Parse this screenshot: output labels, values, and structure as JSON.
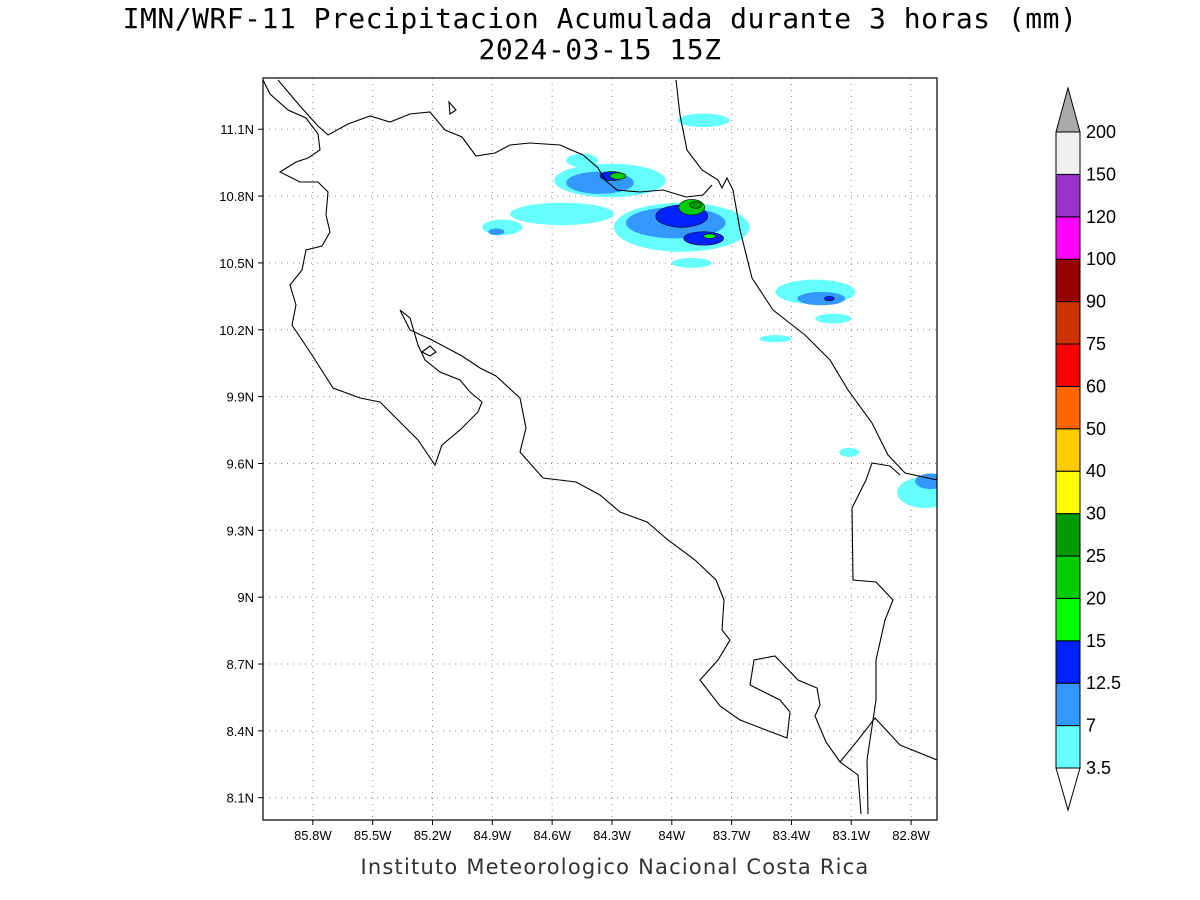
{
  "title": {
    "line1": "IMN/WRF-11 Precipitacion Acumulada durante 3 horas (mm)",
    "line2": "2024-03-15 15Z"
  },
  "footer": "Instituto Meteorologico Nacional Costa Rica",
  "map": {
    "lon_range": [
      -86.05,
      -82.67
    ],
    "lat_range": [
      8.0,
      11.33
    ],
    "x_ticks": [
      {
        "lon": -85.8,
        "label": "85.8W"
      },
      {
        "lon": -85.5,
        "label": "85.5W"
      },
      {
        "lon": -85.2,
        "label": "85.2W"
      },
      {
        "lon": -84.9,
        "label": "84.9W"
      },
      {
        "lon": -84.6,
        "label": "84.6W"
      },
      {
        "lon": -84.3,
        "label": "84.3W"
      },
      {
        "lon": -84.0,
        "label": "84W"
      },
      {
        "lon": -83.7,
        "label": "83.7W"
      },
      {
        "lon": -83.4,
        "label": "83.4W"
      },
      {
        "lon": -83.1,
        "label": "83.1W"
      },
      {
        "lon": -82.8,
        "label": "82.8W"
      }
    ],
    "y_ticks": [
      {
        "lat": 11.1,
        "label": "11.1N"
      },
      {
        "lat": 10.8,
        "label": "10.8N"
      },
      {
        "lat": 10.5,
        "label": "10.5N"
      },
      {
        "lat": 10.2,
        "label": "10.2N"
      },
      {
        "lat": 9.9,
        "label": "9.9N"
      },
      {
        "lat": 9.6,
        "label": "9.6N"
      },
      {
        "lat": 9.3,
        "label": "9.3N"
      },
      {
        "lat": 9.0,
        "label": "9N"
      },
      {
        "lat": 8.7,
        "label": "8.7N"
      },
      {
        "lat": 8.4,
        "label": "8.4N"
      },
      {
        "lat": 8.1,
        "label": "8.1N"
      }
    ],
    "grid": true
  },
  "colorbar": {
    "levels": [
      "3.5",
      "7",
      "12.5",
      "15",
      "20",
      "25",
      "30",
      "40",
      "50",
      "60",
      "75",
      "90",
      "100",
      "120",
      "150",
      "200"
    ],
    "colors": [
      "#66ffff",
      "#3399ff",
      "#0022ff",
      "#00ff00",
      "#00cc00",
      "#009900",
      "#ffff00",
      "#ffcc00",
      "#ff6600",
      "#ff0000",
      "#cc3300",
      "#990000",
      "#ff00ff",
      "#9933cc",
      "#f0f0f0",
      "#aaaaaa"
    ]
  },
  "precip_cells": [
    {
      "level": 0,
      "lon": -84.31,
      "lat": 10.87,
      "rx": 0.28,
      "ry": 0.075
    },
    {
      "level": 1,
      "lon": -84.36,
      "lat": 10.86,
      "rx": 0.17,
      "ry": 0.05
    },
    {
      "level": 2,
      "lon": -84.3,
      "lat": 10.89,
      "rx": 0.06,
      "ry": 0.02
    },
    {
      "level": 4,
      "lon": -84.27,
      "lat": 10.89,
      "rx": 0.04,
      "ry": 0.015
    },
    {
      "level": 0,
      "lon": -84.55,
      "lat": 10.72,
      "rx": 0.26,
      "ry": 0.05
    },
    {
      "level": 0,
      "lon": -84.85,
      "lat": 10.66,
      "rx": 0.1,
      "ry": 0.035
    },
    {
      "level": 1,
      "lon": -84.88,
      "lat": 10.64,
      "rx": 0.04,
      "ry": 0.015
    },
    {
      "level": 0,
      "lon": -84.45,
      "lat": 10.96,
      "rx": 0.08,
      "ry": 0.03
    },
    {
      "level": 0,
      "lon": -83.95,
      "lat": 10.66,
      "rx": 0.34,
      "ry": 0.11
    },
    {
      "level": 1,
      "lon": -83.98,
      "lat": 10.68,
      "rx": 0.25,
      "ry": 0.07
    },
    {
      "level": 2,
      "lon": -83.95,
      "lat": 10.71,
      "rx": 0.13,
      "ry": 0.05
    },
    {
      "level": 2,
      "lon": -83.84,
      "lat": 10.61,
      "rx": 0.1,
      "ry": 0.03
    },
    {
      "level": 4,
      "lon": -83.9,
      "lat": 10.75,
      "rx": 0.065,
      "ry": 0.035
    },
    {
      "level": 5,
      "lon": -83.88,
      "lat": 10.76,
      "rx": 0.03,
      "ry": 0.015
    },
    {
      "level": 3,
      "lon": -83.81,
      "lat": 10.62,
      "rx": 0.03,
      "ry": 0.01
    },
    {
      "level": 0,
      "lon": -83.9,
      "lat": 10.5,
      "rx": 0.1,
      "ry": 0.022
    },
    {
      "level": 0,
      "lon": -83.84,
      "lat": 11.14,
      "rx": 0.13,
      "ry": 0.03
    },
    {
      "level": 0,
      "lon": -83.28,
      "lat": 10.37,
      "rx": 0.2,
      "ry": 0.055
    },
    {
      "level": 1,
      "lon": -83.25,
      "lat": 10.34,
      "rx": 0.12,
      "ry": 0.03
    },
    {
      "level": 2,
      "lon": -83.21,
      "lat": 10.34,
      "rx": 0.025,
      "ry": 0.01
    },
    {
      "level": 0,
      "lon": -83.19,
      "lat": 10.25,
      "rx": 0.09,
      "ry": 0.022
    },
    {
      "level": 0,
      "lon": -83.48,
      "lat": 10.16,
      "rx": 0.08,
      "ry": 0.016
    },
    {
      "level": 0,
      "lon": -83.11,
      "lat": 9.65,
      "rx": 0.05,
      "ry": 0.02
    },
    {
      "level": 0,
      "lon": -82.73,
      "lat": 9.47,
      "rx": 0.14,
      "ry": 0.07
    },
    {
      "level": 1,
      "lon": -82.7,
      "lat": 9.52,
      "rx": 0.08,
      "ry": 0.035
    }
  ]
}
